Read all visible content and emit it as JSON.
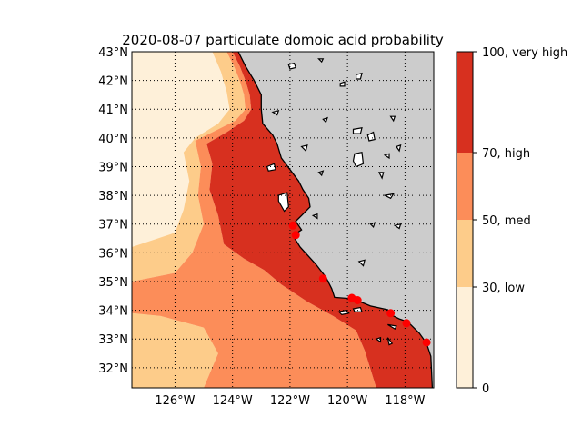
{
  "title": "2020-08-07 particulate domoic acid probability",
  "map": {
    "lon_range": [
      -127.5,
      -117.0
    ],
    "lat_range": [
      31.3,
      43.0
    ],
    "land_color": "#cccccc",
    "gridlines": true,
    "lat_ticks": [
      {
        "value": 32,
        "label": "32°N"
      },
      {
        "value": 33,
        "label": "33°N"
      },
      {
        "value": 34,
        "label": "34°N"
      },
      {
        "value": 35,
        "label": "35°N"
      },
      {
        "value": 36,
        "label": "36°N"
      },
      {
        "value": 37,
        "label": "37°N"
      },
      {
        "value": 38,
        "label": "38°N"
      },
      {
        "value": 39,
        "label": "39°N"
      },
      {
        "value": 40,
        "label": "40°N"
      },
      {
        "value": 41,
        "label": "41°N"
      },
      {
        "value": 42,
        "label": "42°N"
      },
      {
        "value": 43,
        "label": "43°N"
      }
    ],
    "lon_ticks": [
      {
        "value": -126,
        "label": "126°W"
      },
      {
        "value": -124,
        "label": "124°W"
      },
      {
        "value": -122,
        "label": "122°W"
      },
      {
        "value": -120,
        "label": "120°W"
      },
      {
        "value": -118,
        "label": "118°W"
      }
    ],
    "coastline": [
      [
        -123.8,
        43.0
      ],
      [
        -123.55,
        42.5
      ],
      [
        -123.25,
        42.0
      ],
      [
        -123.0,
        41.5
      ],
      [
        -123.0,
        41.0
      ],
      [
        -122.95,
        40.5
      ],
      [
        -122.6,
        40.1
      ],
      [
        -122.45,
        39.8
      ],
      [
        -122.3,
        39.3
      ],
      [
        -122.0,
        38.9
      ],
      [
        -121.7,
        38.5
      ],
      [
        -121.55,
        38.2
      ],
      [
        -121.35,
        37.9
      ],
      [
        -121.3,
        37.6
      ],
      [
        -121.6,
        37.3
      ],
      [
        -121.8,
        37.1
      ],
      [
        -121.6,
        36.8
      ],
      [
        -121.9,
        36.6
      ],
      [
        -121.65,
        36.2
      ],
      [
        -121.1,
        35.6
      ],
      [
        -120.75,
        35.15
      ],
      [
        -120.55,
        34.75
      ],
      [
        -120.45,
        34.45
      ],
      [
        -119.8,
        34.4
      ],
      [
        -119.2,
        34.15
      ],
      [
        -118.6,
        34.02
      ],
      [
        -118.4,
        33.8
      ],
      [
        -118.2,
        33.7
      ],
      [
        -117.9,
        33.6
      ],
      [
        -117.5,
        33.2
      ],
      [
        -117.25,
        32.85
      ],
      [
        -117.1,
        32.4
      ],
      [
        -117.05,
        31.3
      ]
    ],
    "probability_zones": [
      {
        "level": "very_high",
        "color": "#d7301f",
        "polygon": [
          [
            -124.0,
            43.0
          ],
          [
            -123.75,
            42.5
          ],
          [
            -123.55,
            42.0
          ],
          [
            -123.4,
            41.5
          ],
          [
            -123.35,
            41.0
          ],
          [
            -123.6,
            40.6
          ],
          [
            -124.2,
            40.2
          ],
          [
            -124.9,
            39.8
          ],
          [
            -124.7,
            39.1
          ],
          [
            -124.8,
            38.2
          ],
          [
            -124.5,
            37.3
          ],
          [
            -124.3,
            36.3
          ],
          [
            -123.6,
            35.8
          ],
          [
            -122.9,
            35.4
          ],
          [
            -122.3,
            34.9
          ],
          [
            -121.4,
            34.3
          ],
          [
            -120.5,
            33.8
          ],
          [
            -119.7,
            33.3
          ],
          [
            -119.4,
            32.6
          ],
          [
            -119.0,
            31.3
          ],
          [
            -117.05,
            31.3
          ],
          [
            -117.1,
            32.4
          ],
          [
            -117.25,
            32.85
          ],
          [
            -117.5,
            33.2
          ],
          [
            -117.9,
            33.6
          ],
          [
            -118.2,
            33.7
          ],
          [
            -118.4,
            33.8
          ],
          [
            -118.6,
            34.02
          ],
          [
            -119.2,
            34.15
          ],
          [
            -119.8,
            34.4
          ],
          [
            -120.45,
            34.45
          ],
          [
            -120.55,
            34.75
          ],
          [
            -120.75,
            35.15
          ],
          [
            -121.1,
            35.6
          ],
          [
            -121.65,
            36.2
          ],
          [
            -121.9,
            36.6
          ],
          [
            -121.6,
            36.8
          ],
          [
            -121.8,
            37.1
          ],
          [
            -121.6,
            37.3
          ],
          [
            -121.3,
            37.6
          ],
          [
            -121.35,
            37.9
          ],
          [
            -121.55,
            38.2
          ],
          [
            -121.7,
            38.5
          ],
          [
            -122.0,
            38.9
          ],
          [
            -122.3,
            39.3
          ],
          [
            -122.45,
            39.8
          ],
          [
            -122.6,
            40.1
          ],
          [
            -122.95,
            40.5
          ],
          [
            -123.0,
            41.0
          ],
          [
            -123.0,
            41.5
          ],
          [
            -123.25,
            42.0
          ],
          [
            -123.55,
            42.5
          ],
          [
            -123.8,
            43.0
          ]
        ]
      },
      {
        "level": "high",
        "color": "#fc8d59",
        "polygon": [
          [
            -124.2,
            43.0
          ],
          [
            -123.95,
            42.5
          ],
          [
            -123.75,
            42.0
          ],
          [
            -123.6,
            41.5
          ],
          [
            -123.55,
            41.0
          ],
          [
            -123.9,
            40.6
          ],
          [
            -124.6,
            40.25
          ],
          [
            -125.3,
            39.9
          ],
          [
            -125.1,
            39.0
          ],
          [
            -125.2,
            38.0
          ],
          [
            -125.0,
            37.0
          ],
          [
            -125.4,
            36.0
          ],
          [
            -126.0,
            35.3
          ],
          [
            -127.5,
            35.0
          ],
          [
            -127.5,
            33.9
          ],
          [
            -126.5,
            33.8
          ],
          [
            -125.0,
            33.4
          ],
          [
            -124.5,
            32.5
          ],
          [
            -125.0,
            31.3
          ],
          [
            -119.0,
            31.3
          ],
          [
            -119.4,
            32.6
          ],
          [
            -119.7,
            33.3
          ],
          [
            -120.5,
            33.8
          ],
          [
            -121.4,
            34.3
          ],
          [
            -122.3,
            34.9
          ],
          [
            -122.9,
            35.4
          ],
          [
            -123.6,
            35.8
          ],
          [
            -124.3,
            36.3
          ],
          [
            -124.5,
            37.3
          ],
          [
            -124.8,
            38.2
          ],
          [
            -124.7,
            39.1
          ],
          [
            -124.9,
            39.8
          ],
          [
            -124.2,
            40.2
          ],
          [
            -123.6,
            40.6
          ],
          [
            -123.35,
            41.0
          ],
          [
            -123.4,
            41.5
          ],
          [
            -123.55,
            42.0
          ],
          [
            -123.75,
            42.5
          ],
          [
            -124.0,
            43.0
          ]
        ]
      },
      {
        "level": "med",
        "color": "#fdcc8a",
        "polygon": [
          [
            -124.7,
            43.0
          ],
          [
            -124.4,
            42.3
          ],
          [
            -124.2,
            41.6
          ],
          [
            -124.1,
            41.0
          ],
          [
            -124.5,
            40.5
          ],
          [
            -125.3,
            40.0
          ],
          [
            -125.7,
            39.5
          ],
          [
            -125.5,
            38.5
          ],
          [
            -125.7,
            37.5
          ],
          [
            -126.0,
            36.7
          ],
          [
            -127.5,
            36.2
          ],
          [
            -127.5,
            31.3
          ],
          [
            -125.0,
            31.3
          ],
          [
            -124.5,
            32.5
          ],
          [
            -125.0,
            33.4
          ],
          [
            -126.5,
            33.8
          ],
          [
            -127.5,
            33.9
          ],
          [
            -127.5,
            35.0
          ],
          [
            -126.0,
            35.3
          ],
          [
            -125.4,
            36.0
          ],
          [
            -125.0,
            37.0
          ],
          [
            -125.2,
            38.0
          ],
          [
            -125.1,
            39.0
          ],
          [
            -125.3,
            39.9
          ],
          [
            -124.6,
            40.25
          ],
          [
            -123.9,
            40.6
          ],
          [
            -123.55,
            41.0
          ],
          [
            -123.6,
            41.5
          ],
          [
            -123.75,
            42.0
          ],
          [
            -123.95,
            42.5
          ],
          [
            -124.2,
            43.0
          ]
        ]
      }
    ],
    "islands": [
      [
        [
          -122.05,
          42.55
        ],
        [
          -121.85,
          42.6
        ],
        [
          -121.8,
          42.45
        ],
        [
          -122.0,
          42.4
        ]
      ],
      [
        [
          -121.0,
          42.75
        ],
        [
          -120.85,
          42.75
        ],
        [
          -120.9,
          42.65
        ]
      ],
      [
        [
          -119.7,
          42.2
        ],
        [
          -119.5,
          42.25
        ],
        [
          -119.55,
          42.05
        ],
        [
          -119.7,
          42.05
        ]
      ],
      [
        [
          -120.25,
          41.9
        ],
        [
          -120.1,
          41.95
        ],
        [
          -120.1,
          41.8
        ],
        [
          -120.25,
          41.8
        ]
      ],
      [
        [
          -122.6,
          40.9
        ],
        [
          -122.4,
          40.95
        ],
        [
          -122.45,
          40.8
        ]
      ],
      [
        [
          -120.85,
          40.65
        ],
        [
          -120.7,
          40.7
        ],
        [
          -120.75,
          40.55
        ]
      ],
      [
        [
          -119.8,
          40.3
        ],
        [
          -119.5,
          40.35
        ],
        [
          -119.55,
          40.15
        ],
        [
          -119.8,
          40.15
        ]
      ],
      [
        [
          -119.3,
          40.1
        ],
        [
          -119.1,
          40.2
        ],
        [
          -119.05,
          39.95
        ],
        [
          -119.25,
          39.9
        ]
      ],
      [
        [
          -118.5,
          40.75
        ],
        [
          -118.35,
          40.75
        ],
        [
          -118.4,
          40.6
        ]
      ],
      [
        [
          -121.6,
          39.7
        ],
        [
          -121.4,
          39.75
        ],
        [
          -121.45,
          39.55
        ]
      ],
      [
        [
          -118.3,
          39.7
        ],
        [
          -118.15,
          39.75
        ],
        [
          -118.2,
          39.55
        ]
      ],
      [
        [
          -122.8,
          39.0
        ],
        [
          -122.55,
          39.1
        ],
        [
          -122.5,
          38.9
        ],
        [
          -122.75,
          38.85
        ]
      ],
      [
        [
          -119.75,
          39.45
        ],
        [
          -119.5,
          39.5
        ],
        [
          -119.45,
          39.1
        ],
        [
          -119.7,
          39.0
        ],
        [
          -119.8,
          39.2
        ]
      ],
      [
        [
          -118.7,
          39.4
        ],
        [
          -118.55,
          39.45
        ],
        [
          -118.55,
          39.3
        ]
      ],
      [
        [
          -121.0,
          38.8
        ],
        [
          -120.85,
          38.85
        ],
        [
          -120.9,
          38.7
        ]
      ],
      [
        [
          -118.9,
          38.8
        ],
        [
          -118.75,
          38.8
        ],
        [
          -118.8,
          38.6
        ]
      ],
      [
        [
          -118.7,
          38.0
        ],
        [
          -118.4,
          38.05
        ],
        [
          -118.5,
          37.9
        ]
      ],
      [
        [
          -122.4,
          38.0
        ],
        [
          -122.1,
          38.1
        ],
        [
          -122.05,
          37.6
        ],
        [
          -122.2,
          37.45
        ],
        [
          -122.4,
          37.8
        ]
      ],
      [
        [
          -121.2,
          37.3
        ],
        [
          -121.05,
          37.35
        ],
        [
          -121.05,
          37.2
        ]
      ],
      [
        [
          -119.2,
          37.0
        ],
        [
          -119.05,
          37.05
        ],
        [
          -119.1,
          36.9
        ]
      ],
      [
        [
          -118.35,
          36.95
        ],
        [
          -118.15,
          37.0
        ],
        [
          -118.2,
          36.85
        ]
      ],
      [
        [
          -119.6,
          35.7
        ],
        [
          -119.4,
          35.75
        ],
        [
          -119.45,
          35.55
        ]
      ],
      [
        [
          -120.3,
          33.95
        ],
        [
          -120.05,
          34.0
        ],
        [
          -119.95,
          33.9
        ],
        [
          -120.2,
          33.85
        ]
      ],
      [
        [
          -119.8,
          34.05
        ],
        [
          -119.55,
          34.1
        ],
        [
          -119.5,
          33.95
        ],
        [
          -119.75,
          33.95
        ]
      ],
      [
        [
          -118.6,
          33.5
        ],
        [
          -118.3,
          33.45
        ],
        [
          -118.35,
          33.35
        ]
      ],
      [
        [
          -118.6,
          33.05
        ],
        [
          -118.45,
          32.85
        ],
        [
          -118.55,
          32.8
        ]
      ],
      [
        [
          -119.0,
          33.0
        ],
        [
          -118.85,
          33.05
        ],
        [
          -118.85,
          32.9
        ]
      ]
    ]
  },
  "stations": [
    {
      "lon": -121.9,
      "lat": 36.95
    },
    {
      "lon": -121.8,
      "lat": 36.62
    },
    {
      "lon": -120.85,
      "lat": 35.1
    },
    {
      "lon": -119.85,
      "lat": 34.43
    },
    {
      "lon": -119.65,
      "lat": 34.35
    },
    {
      "lon": -118.5,
      "lat": 33.9
    },
    {
      "lon": -117.95,
      "lat": 33.55
    },
    {
      "lon": -117.25,
      "lat": 32.88
    }
  ],
  "station_color": "#ff0000",
  "colorbar": {
    "range": [
      0,
      100
    ],
    "bands": [
      {
        "from": 0,
        "to": 30,
        "color": "#fef0d9"
      },
      {
        "from": 30,
        "to": 50,
        "color": "#fdcc8a"
      },
      {
        "from": 50,
        "to": 70,
        "color": "#fc8d59"
      },
      {
        "from": 70,
        "to": 100,
        "color": "#d7301f"
      }
    ],
    "ticks": [
      {
        "value": 0,
        "label": "0"
      },
      {
        "value": 30,
        "label": "30, low"
      },
      {
        "value": 50,
        "label": "50, med"
      },
      {
        "value": 70,
        "label": "70, high"
      },
      {
        "value": 100,
        "label": "100, very high"
      }
    ]
  },
  "ocean_base_color": "#fef0d9"
}
